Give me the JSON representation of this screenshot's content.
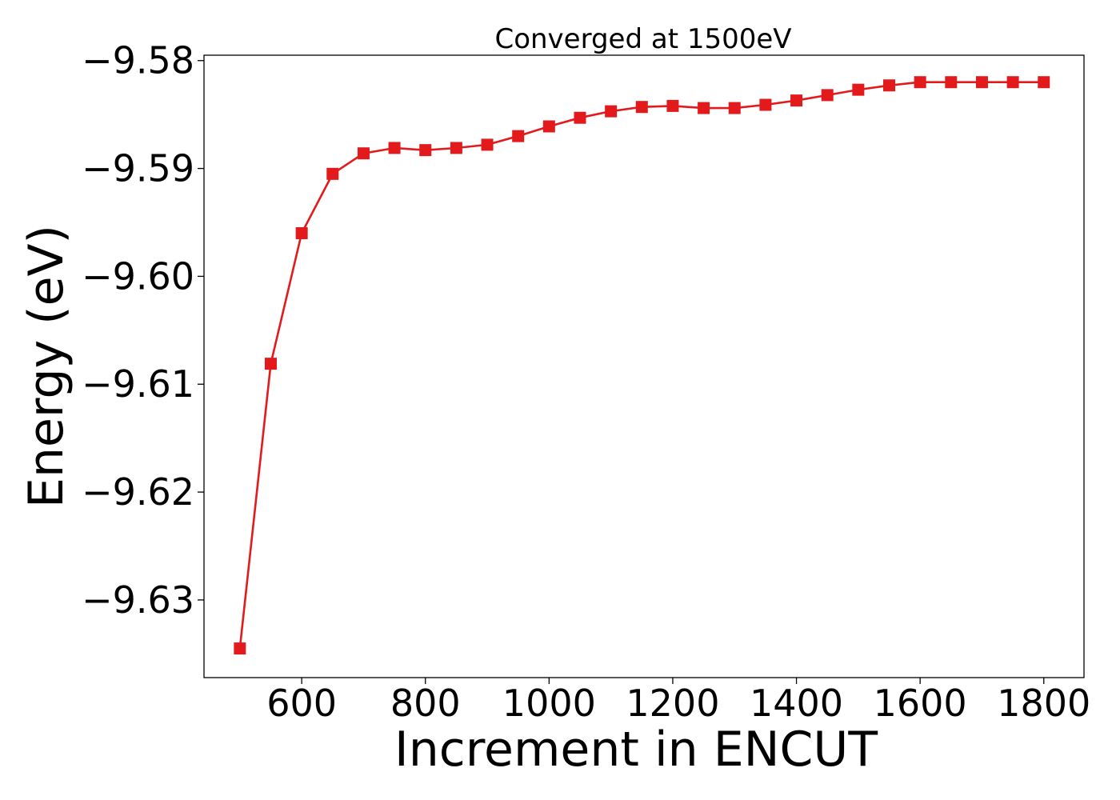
{
  "chart_data": {
    "type": "line",
    "title": "Converged at 1500eV",
    "xlabel": "Increment in ENCUT",
    "ylabel": "Energy (eV)",
    "xlim": [
      442,
      1865
    ],
    "ylim": [
      -9.6372,
      -9.5795
    ],
    "xticks": [
      600,
      800,
      1000,
      1200,
      1400,
      1600,
      1800
    ],
    "xtick_labels": [
      "600",
      "800",
      "1000",
      "1200",
      "1400",
      "1600",
      "1800"
    ],
    "yticks": [
      -9.58,
      -9.59,
      -9.6,
      -9.61,
      -9.62,
      -9.63
    ],
    "ytick_labels": [
      "−9.58",
      "−9.59",
      "−9.60",
      "−9.61",
      "−9.62",
      "−9.63"
    ],
    "grid": false,
    "series": [
      {
        "color": "#e31a1c",
        "marker": "square",
        "x": [
          500,
          550,
          600,
          650,
          700,
          750,
          800,
          850,
          900,
          950,
          1000,
          1050,
          1100,
          1150,
          1200,
          1250,
          1300,
          1350,
          1400,
          1450,
          1500,
          1550,
          1600,
          1650,
          1700,
          1750,
          1800
        ],
        "values": [
          -9.6345,
          -9.6081,
          -9.596,
          -9.5905,
          -9.5886,
          -9.5881,
          -9.5883,
          -9.5881,
          -9.5878,
          -9.587,
          -9.5861,
          -9.5853,
          -9.5847,
          -9.5843,
          -9.5842,
          -9.5844,
          -9.5844,
          -9.5841,
          -9.5837,
          -9.5832,
          -9.5827,
          -9.5823,
          -9.582,
          -9.582,
          -9.582,
          -9.582,
          -9.582
        ]
      }
    ]
  }
}
